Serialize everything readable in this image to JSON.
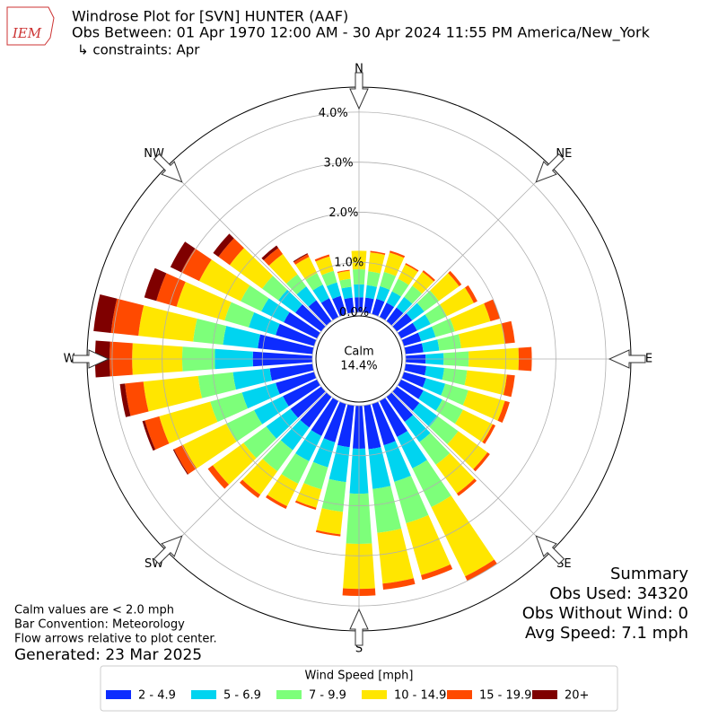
{
  "chart_data": {
    "type": "windrose",
    "title": "Windrose Plot for [SVN] HUNTER (AAF)",
    "subtitle": "Obs Between: 01 Apr 1970 12:00 AM - 30 Apr 2024 11:55 PM America/New_York",
    "constraints": "↳ constraints: Apr",
    "logo": "IEM",
    "compass": [
      "N",
      "NE",
      "E",
      "SE",
      "S",
      "SW",
      "W",
      "NW"
    ],
    "calm": {
      "label": "Calm",
      "value": 14.4,
      "value_label": "14.4%"
    },
    "rlim": [
      0,
      4.5
    ],
    "rticks": [
      {
        "value": 0,
        "label": "0.0%"
      },
      {
        "value": 1,
        "label": "1.0%"
      },
      {
        "value": 2,
        "label": "2.0%"
      },
      {
        "value": 3,
        "label": "3.0%"
      },
      {
        "value": 4,
        "label": "4.0%"
      }
    ],
    "grid": true,
    "x": [
      0,
      10,
      20,
      30,
      40,
      50,
      60,
      70,
      80,
      90,
      100,
      110,
      120,
      130,
      140,
      150,
      160,
      170,
      180,
      190,
      200,
      210,
      220,
      230,
      240,
      250,
      260,
      270,
      280,
      290,
      300,
      310,
      320,
      330,
      340,
      350
    ],
    "legend_title": "Wind Speed [mph]",
    "series": [
      {
        "name": "2 - 4.9",
        "color": "#0d2cff",
        "values": [
          0.3,
          0.3,
          0.32,
          0.32,
          0.34,
          0.38,
          0.36,
          0.36,
          0.36,
          0.4,
          0.42,
          0.46,
          0.5,
          0.56,
          0.62,
          0.8,
          0.86,
          0.88,
          0.86,
          0.84,
          0.8,
          0.78,
          0.76,
          0.76,
          0.76,
          0.8,
          0.86,
          1.19,
          1.1,
          0.8,
          0.74,
          0.64,
          0.52,
          0.42,
          0.38,
          0.3
        ]
      },
      {
        "name": "5 - 6.9",
        "color": "#00d4f0",
        "values": [
          0.26,
          0.25,
          0.26,
          0.25,
          0.26,
          0.3,
          0.3,
          0.3,
          0.32,
          0.36,
          0.36,
          0.4,
          0.42,
          0.46,
          0.5,
          0.7,
          0.76,
          0.8,
          0.9,
          0.7,
          0.52,
          0.56,
          0.56,
          0.6,
          0.64,
          0.7,
          0.74,
          0.76,
          0.7,
          0.56,
          0.5,
          0.42,
          0.34,
          0.3,
          0.28,
          0.22
        ]
      },
      {
        "name": "7 - 9.9",
        "color": "#7dff7a",
        "values": [
          0.3,
          0.28,
          0.3,
          0.28,
          0.28,
          0.36,
          0.36,
          0.4,
          0.44,
          0.5,
          0.46,
          0.48,
          0.46,
          0.5,
          0.56,
          0.86,
          0.86,
          0.88,
          1.0,
          0.6,
          0.46,
          0.5,
          0.52,
          0.56,
          0.62,
          0.66,
          0.7,
          0.65,
          0.6,
          0.5,
          0.46,
          0.4,
          0.3,
          0.26,
          0.24,
          0.16
        ]
      },
      {
        "name": "10 - 14.9",
        "color": "#ffe600",
        "values": [
          0.37,
          0.38,
          0.4,
          0.32,
          0.34,
          0.5,
          0.6,
          0.74,
          0.88,
          1.0,
          0.8,
          0.76,
          0.66,
          0.72,
          0.71,
          1.54,
          1.08,
          1.02,
          0.9,
          0.45,
          0.38,
          0.5,
          0.58,
          0.76,
          0.96,
          1.06,
          1.1,
          1.0,
          1.1,
          1.0,
          0.92,
          0.8,
          0.5,
          0.36,
          0.3,
          0.16
        ]
      },
      {
        "name": "15 - 19.9",
        "color": "#ff4a00",
        "values": [
          0,
          0.03,
          0.04,
          0.03,
          0.04,
          0.06,
          0.08,
          0.2,
          0.2,
          0.26,
          0.16,
          0.1,
          0.06,
          0.06,
          0.06,
          0.1,
          0.1,
          0.12,
          0.14,
          0.04,
          0.04,
          0.06,
          0.08,
          0.12,
          0.2,
          0.3,
          0.37,
          0.45,
          0.55,
          0.42,
          0.4,
          0.28,
          0.15,
          0.06,
          0.04,
          0.02
        ]
      },
      {
        "name": "20+",
        "color": "#7f0000",
        "values": [
          0,
          0,
          0,
          0,
          0,
          0,
          0,
          0,
          0,
          0,
          0,
          0,
          0,
          0,
          0,
          0,
          0,
          0,
          0,
          0,
          0,
          0,
          0,
          0,
          0.02,
          0.05,
          0.1,
          0.29,
          0.35,
          0.25,
          0.24,
          0.13,
          0.06,
          0.02,
          0,
          0
        ]
      }
    ],
    "notes": [
      "Calm values are < 2.0 mph",
      "Bar Convention: Meteorology",
      "Flow arrows relative to plot center."
    ],
    "generated": "Generated: 23 Mar 2025",
    "summary": {
      "title": "Summary",
      "lines": [
        "Obs Used: 34320",
        "Obs Without Wind: 0",
        "Avg Speed: 7.1 mph"
      ]
    }
  }
}
